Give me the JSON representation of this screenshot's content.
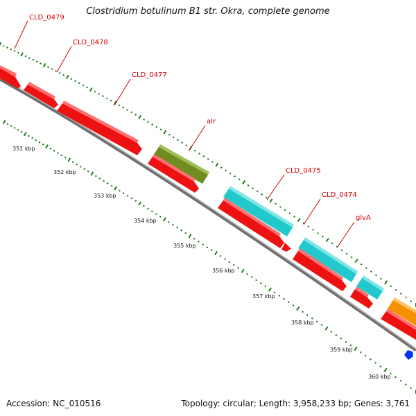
{
  "title": "Clostridium botulinum B1 str. Okra, complete genome",
  "footer": {
    "accession": "Accession: NC_010516",
    "meta": "Topology: circular; Length: 3,958,233 bp; Genes: 3,761"
  },
  "colors": {
    "cds_red": "#ee1111",
    "cds_cyan": "#22c9cc",
    "cds_olive": "#6e8c1f",
    "cds_orange": "#f59000",
    "marker_blue": "#0033ee",
    "backbone": "#8c8c8c",
    "label_red": "#d40000",
    "tick_green": "#1e7a1e"
  },
  "gene_labels": [
    "CLD_0479",
    "CLD_0478",
    "CLD_0477",
    "alr",
    "CLD_0475",
    "CLD_0474",
    "glvA"
  ],
  "kbp_ticks": [
    "351 kbp",
    "352 kbp",
    "353 kbp",
    "354 kbp",
    "355 kbp",
    "356 kbp",
    "357 kbp",
    "358 kbp",
    "359 kbp",
    "360 kbp"
  ]
}
